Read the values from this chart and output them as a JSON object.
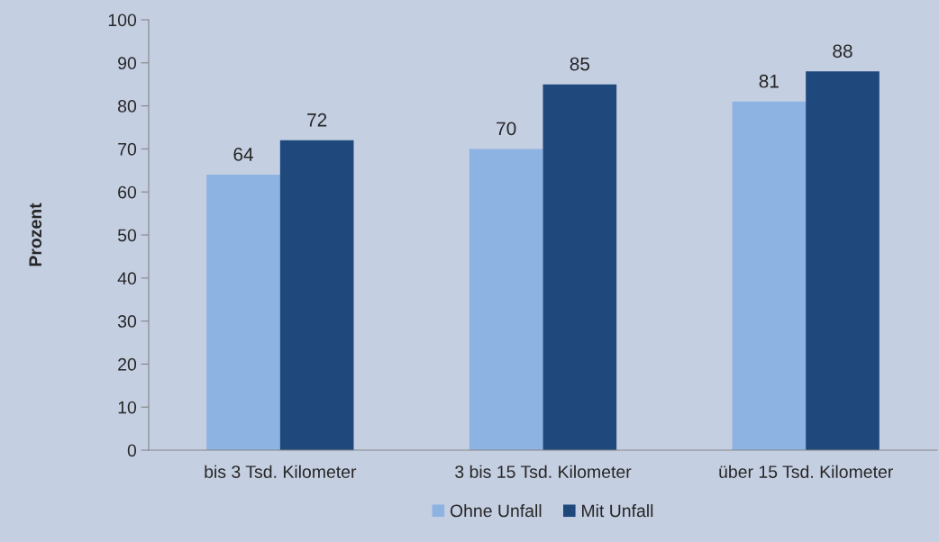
{
  "chart_data": {
    "type": "bar",
    "ylabel": "Prozent",
    "categories": [
      "bis 3 Tsd. Kilometer",
      "3 bis 15 Tsd. Kilometer",
      "über 15 Tsd. Kilometer"
    ],
    "series": [
      {
        "name": "Ohne Unfall",
        "color": "#8db3e2",
        "values": [
          64,
          70,
          81
        ]
      },
      {
        "name": "Mit Unfall",
        "color": "#1f497d",
        "values": [
          72,
          85,
          88
        ]
      }
    ],
    "ylim": [
      0,
      100
    ],
    "yticks": [
      0,
      10,
      20,
      30,
      40,
      50,
      60,
      70,
      80,
      90,
      100
    ],
    "data_labels": true,
    "grid": false,
    "legend": "bottom"
  }
}
